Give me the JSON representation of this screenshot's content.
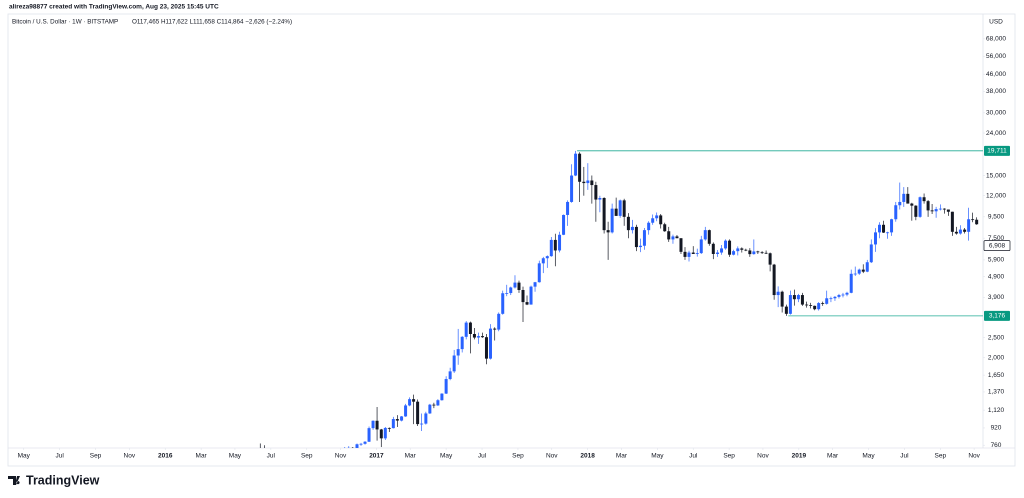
{
  "chart_data": {
    "type": "candlestick",
    "attribution": "alireza98877 created with TradingView.com, Aug 23, 2025 15:45 UTC",
    "title": "Bitcoin / U.S. Dollar · 1W · BITSTAMP",
    "ohlc": "O117,465 H117,622 L111,658 C114,864 −2,626 (−2.24%)",
    "currency": "USD",
    "brand": "TradingView",
    "log_scale": true,
    "up_color": "#2962ff",
    "down_color": "#131722",
    "level_color": "#22ab94",
    "level_label_color": "#089981",
    "xlim": [
      2015.265,
      2019.872
    ],
    "ylim": [
      737,
      75000
    ],
    "xticks": [
      {
        "value": 2015.33,
        "label": "May"
      },
      {
        "value": 2015.5,
        "label": "Jul"
      },
      {
        "value": 2015.67,
        "label": "Sep"
      },
      {
        "value": 2015.83,
        "label": "Nov"
      },
      {
        "value": 2016,
        "label": "2016"
      },
      {
        "value": 2016.17,
        "label": "Mar"
      },
      {
        "value": 2016.33,
        "label": "May"
      },
      {
        "value": 2016.5,
        "label": "Jul"
      },
      {
        "value": 2016.67,
        "label": "Sep"
      },
      {
        "value": 2016.83,
        "label": "Nov"
      },
      {
        "value": 2017,
        "label": "2017"
      },
      {
        "value": 2017.16,
        "label": "Mar"
      },
      {
        "value": 2017.33,
        "label": "May"
      },
      {
        "value": 2017.5,
        "label": "Jul"
      },
      {
        "value": 2017.67,
        "label": "Sep"
      },
      {
        "value": 2017.83,
        "label": "Nov"
      },
      {
        "value": 2018,
        "label": "2018"
      },
      {
        "value": 2018.16,
        "label": "Mar"
      },
      {
        "value": 2018.33,
        "label": "May"
      },
      {
        "value": 2018.5,
        "label": "Jul"
      },
      {
        "value": 2018.67,
        "label": "Sep"
      },
      {
        "value": 2018.83,
        "label": "Nov"
      },
      {
        "value": 2019,
        "label": "2019"
      },
      {
        "value": 2019.16,
        "label": "Mar"
      },
      {
        "value": 2019.33,
        "label": "May"
      },
      {
        "value": 2019.5,
        "label": "Jul"
      },
      {
        "value": 2019.67,
        "label": "Sep"
      },
      {
        "value": 2019.83,
        "label": "Nov"
      }
    ],
    "yticks": [
      {
        "value": 68000,
        "label": "68,000"
      },
      {
        "value": 56000,
        "label": "56,000"
      },
      {
        "value": 46000,
        "label": "46,000"
      },
      {
        "value": 38000,
        "label": "38,000"
      },
      {
        "value": 30000,
        "label": "30,000"
      },
      {
        "value": 24000,
        "label": "24,000"
      },
      {
        "value": 15000,
        "label": "15,000"
      },
      {
        "value": 12000,
        "label": "12,000"
      },
      {
        "value": 9500,
        "label": "9,500"
      },
      {
        "value": 7500,
        "label": "7,500"
      },
      {
        "value": 5900,
        "label": "5,900"
      },
      {
        "value": 4900,
        "label": "4,900"
      },
      {
        "value": 3900,
        "label": "3,900"
      },
      {
        "value": 2500,
        "label": "2,500"
      },
      {
        "value": 2000,
        "label": "2,000"
      },
      {
        "value": 1650,
        "label": "1,650"
      },
      {
        "value": 1370,
        "label": "1,370"
      },
      {
        "value": 1120,
        "label": "1,120"
      },
      920,
      760
    ],
    "levels": [
      {
        "value": 19711,
        "label": "19,711",
        "from": 2017.95
      },
      {
        "value": 3176,
        "label": "3,176",
        "from": 2018.95
      }
    ],
    "last_price": {
      "value": 6908,
      "label": "6,908"
    },
    "x": [
      2016.45,
      2016.47,
      2016.85,
      2016.869,
      2016.888,
      2016.908,
      2016.927,
      2016.946,
      2016.965,
      2016.984,
      2017.003,
      2017.023,
      2017.042,
      2017.061,
      2017.08,
      2017.099,
      2017.119,
      2017.138,
      2017.157,
      2017.176,
      2017.195,
      2017.214,
      2017.234,
      2017.253,
      2017.272,
      2017.291,
      2017.31,
      2017.33,
      2017.349,
      2017.368,
      2017.387,
      2017.406,
      2017.425,
      2017.445,
      2017.464,
      2017.483,
      2017.502,
      2017.521,
      2017.54,
      2017.56,
      2017.579,
      2017.598,
      2017.617,
      2017.636,
      2017.656,
      2017.675,
      2017.694,
      2017.713,
      2017.732,
      2017.751,
      2017.771,
      2017.79,
      2017.809,
      2017.828,
      2017.847,
      2017.867,
      2017.886,
      2017.905,
      2017.924,
      2017.943,
      2017.962,
      2017.982,
      2018.001,
      2018.02,
      2018.039,
      2018.058,
      2018.078,
      2018.097,
      2018.116,
      2018.135,
      2018.154,
      2018.173,
      2018.193,
      2018.212,
      2018.231,
      2018.25,
      2018.269,
      2018.289,
      2018.308,
      2018.327,
      2018.346,
      2018.365,
      2018.384,
      2018.404,
      2018.423,
      2018.442,
      2018.461,
      2018.48,
      2018.5,
      2018.519,
      2018.538,
      2018.557,
      2018.576,
      2018.595,
      2018.615,
      2018.634,
      2018.653,
      2018.672,
      2018.691,
      2018.711,
      2018.73,
      2018.749,
      2018.768,
      2018.787,
      2018.806,
      2018.826,
      2018.845,
      2018.864,
      2018.883,
      2018.902,
      2018.921,
      2018.941,
      2018.96,
      2018.979,
      2018.998,
      2019.017,
      2019.037,
      2019.056,
      2019.075,
      2019.094,
      2019.113,
      2019.132,
      2019.152,
      2019.171,
      2019.19,
      2019.209,
      2019.228,
      2019.248,
      2019.267,
      2019.286,
      2019.305,
      2019.324,
      2019.343,
      2019.363,
      2019.382,
      2019.401,
      2019.42,
      2019.439,
      2019.459,
      2019.478,
      2019.497,
      2019.516,
      2019.535,
      2019.554,
      2019.574,
      2019.593,
      2019.612,
      2019.631,
      2019.65,
      2019.67,
      2019.689,
      2019.708,
      2019.727,
      2019.746,
      2019.765,
      2019.785,
      2019.804,
      2019.823,
      2019.842
    ],
    "open": [
      718,
      690,
      703,
      730,
      738,
      731,
      768,
      772,
      790,
      918,
      996,
      905,
      820,
      920,
      918,
      1015,
      998,
      1045,
      1180,
      1265,
      1230,
      960,
      965,
      1080,
      1190,
      1180,
      1250,
      1345,
      1580,
      1720,
      2050,
      2200,
      2520,
      2950,
      2600,
      2500,
      2540,
      2510,
      1980,
      2760,
      2730,
      3250,
      4080,
      4090,
      4350,
      4590,
      4230,
      3700,
      3600,
      4390,
      4610,
      5680,
      6010,
      6150,
      7360,
      6550,
      7790,
      9700,
      11200,
      15000,
      19100,
      14000,
      13800,
      14200,
      13500,
      11500,
      11700,
      8200,
      8000,
      10400,
      9600,
      11400,
      9500,
      8200,
      8500,
      6800,
      6900,
      8200,
      8900,
      9350,
      9650,
      8750,
      8100,
      7400,
      7650,
      7500,
      6450,
      6100,
      6400,
      6300,
      6360,
      7400,
      8200,
      7050,
      6300,
      6400,
      6700,
      7300,
      6250,
      6500,
      6700,
      6600,
      6550,
      6290,
      6480,
      6420,
      6380,
      6350,
      5600,
      4000,
      4150,
      3520,
      3250,
      4000,
      3820,
      4000,
      3600,
      3580,
      3550,
      3420,
      3660,
      3630,
      3860,
      3860,
      3920,
      4000,
      4020,
      4100,
      5060,
      5070,
      5300,
      5180,
      5750,
      7000,
      8000,
      8700,
      7980,
      8000,
      9250,
      10800,
      11200,
      12250,
      11000,
      10750,
      9500,
      11800,
      11300,
      10200,
      10100,
      10350,
      10400,
      10300,
      10050,
      8050,
      7900,
      8250,
      8050,
      9250,
      9200
    ],
    "high": [
      775,
      760,
      745,
      752,
      745,
      775,
      780,
      795,
      935,
      1000,
      1160,
      910,
      930,
      925,
      1040,
      1060,
      1050,
      1200,
      1290,
      1330,
      1260,
      1080,
      1100,
      1200,
      1215,
      1265,
      1350,
      1630,
      1790,
      2180,
      2750,
      2540,
      3000,
      2980,
      2780,
      2640,
      2640,
      2600,
      2900,
      2800,
      3300,
      4200,
      4480,
      4390,
      4980,
      4690,
      4390,
      3980,
      4440,
      4630,
      5850,
      6100,
      6200,
      7600,
      7880,
      8050,
      9750,
      11400,
      17000,
      19711,
      19400,
      16500,
      17200,
      15000,
      14000,
      12000,
      11800,
      9000,
      11000,
      11750,
      11500,
      11600,
      9900,
      9180,
      8700,
      7470,
      8400,
      9050,
      9750,
      9970,
      9800,
      8900,
      8500,
      7800,
      7770,
      7500,
      6800,
      6530,
      6870,
      6680,
      7700,
      8500,
      8250,
      7160,
      6580,
      6960,
      7400,
      7400,
      6600,
      6850,
      6780,
      6680,
      6720,
      7400,
      6530,
      6500,
      6550,
      6400,
      5650,
      4400,
      4200,
      3600,
      4200,
      4250,
      4050,
      4100,
      3720,
      3670,
      3560,
      3700,
      3720,
      4200,
      3930,
      3960,
      4050,
      4100,
      4150,
      5300,
      5480,
      5360,
      5620,
      5900,
      7400,
      8380,
      8950,
      9100,
      8060,
      9300,
      11200,
      13880,
      13200,
      13200,
      11100,
      10800,
      11900,
      12300,
      11450,
      10950,
      10600,
      10900,
      10450,
      10300,
      10050,
      8500,
      8650,
      8400,
      10500,
      9950,
      9450
    ],
    "low": [
      620,
      600,
      695,
      705,
      725,
      728,
      755,
      765,
      788,
      900,
      800,
      745,
      805,
      880,
      915,
      930,
      990,
      1040,
      1170,
      960,
      940,
      890,
      955,
      1075,
      1145,
      1175,
      1245,
      1340,
      1560,
      1690,
      1850,
      2120,
      2450,
      2100,
      2450,
      2330,
      2490,
      1860,
      1960,
      2420,
      2680,
      3220,
      3950,
      4000,
      4300,
      4100,
      2970,
      3580,
      3600,
      4150,
      4590,
      5100,
      5400,
      6110,
      5500,
      6410,
      7760,
      8600,
      11100,
      14900,
      11200,
      12000,
      12800,
      11000,
      9000,
      10000,
      7900,
      5900,
      7900,
      9600,
      9400,
      8600,
      7500,
      7900,
      6500,
      6430,
      6600,
      7800,
      8700,
      9050,
      8350,
      8050,
      7200,
      7050,
      7500,
      6300,
      5900,
      5800,
      6300,
      6120,
      6300,
      7300,
      6900,
      5950,
      6100,
      6250,
      6600,
      6100,
      6200,
      6200,
      6400,
      6500,
      6100,
      6250,
      6300,
      6300,
      6300,
      5200,
      3800,
      3500,
      3300,
      3176,
      3220,
      3560,
      3700,
      3550,
      3480,
      3450,
      3380,
      3370,
      3550,
      3600,
      3700,
      3750,
      3850,
      3900,
      3950,
      4080,
      4940,
      5000,
      5100,
      5150,
      5700,
      6450,
      7500,
      7950,
      7460,
      7700,
      9000,
      10300,
      10600,
      11000,
      9100,
      9150,
      9400,
      11000,
      9500,
      9800,
      9400,
      10200,
      9850,
      9600,
      7700,
      7800,
      7800,
      7900,
      7300,
      8950,
      8700
    ],
    "close": [
      690,
      660,
      730,
      738,
      731,
      768,
      772,
      790,
      918,
      996,
      905,
      820,
      920,
      918,
      1015,
      998,
      1045,
      1180,
      1265,
      1230,
      960,
      965,
      1080,
      1190,
      1180,
      1250,
      1345,
      1580,
      1720,
      2050,
      2200,
      2520,
      2950,
      2600,
      2500,
      2540,
      2510,
      1980,
      2760,
      2730,
      3250,
      4080,
      4090,
      4350,
      4590,
      4230,
      3700,
      3600,
      4390,
      4610,
      5680,
      6010,
      6150,
      7360,
      6550,
      7790,
      9700,
      11200,
      15000,
      19100,
      14000,
      13800,
      14200,
      13500,
      11500,
      11700,
      8200,
      8000,
      10400,
      9600,
      11400,
      9500,
      8200,
      8500,
      6800,
      6900,
      8200,
      8900,
      9350,
      9650,
      8750,
      8100,
      7400,
      7650,
      7500,
      6450,
      6100,
      6400,
      6300,
      6360,
      7400,
      8200,
      7050,
      6300,
      6400,
      6700,
      7300,
      6250,
      6500,
      6700,
      6600,
      6550,
      6290,
      6480,
      6420,
      6380,
      6350,
      5600,
      4000,
      4150,
      3520,
      3250,
      4000,
      3820,
      4000,
      3600,
      3580,
      3550,
      3420,
      3660,
      3630,
      3860,
      3860,
      3920,
      4000,
      4020,
      4100,
      5060,
      5070,
      5300,
      5180,
      5750,
      7000,
      8000,
      8700,
      7980,
      8000,
      9250,
      10800,
      11200,
      12250,
      11000,
      10750,
      9500,
      11800,
      11300,
      10200,
      10100,
      10350,
      10400,
      10300,
      10050,
      8050,
      7900,
      8250,
      8050,
      9250,
      9200,
      8750
    ]
  }
}
